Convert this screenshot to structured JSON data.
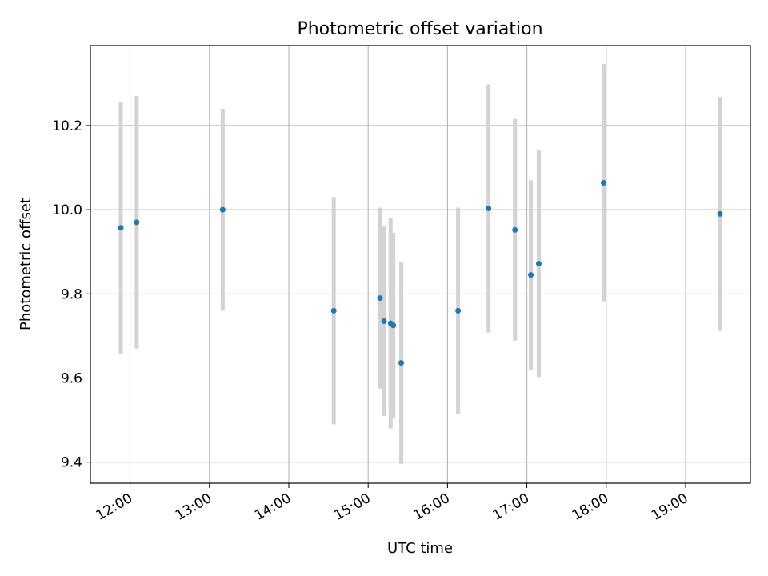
{
  "chart_data": {
    "type": "scatter",
    "title": "Photometric offset variation",
    "xlabel": "UTC time",
    "ylabel": "Photometric offset",
    "xlim": [
      "11:30",
      "19:49"
    ],
    "ylim": [
      9.35,
      10.39
    ],
    "x_ticks": [
      "12:00",
      "13:00",
      "14:00",
      "15:00",
      "16:00",
      "17:00",
      "18:00",
      "19:00"
    ],
    "y_ticks": [
      "9.4",
      "9.6",
      "9.8",
      "10.0",
      "10.2"
    ],
    "grid": true,
    "colors": {
      "point": "#1f77b4",
      "errorbar": "#d3d3d3",
      "grid": "#b0b0b0"
    },
    "points": [
      {
        "x": "11:53",
        "y": 9.957,
        "yerr": 0.3
      },
      {
        "x": "12:05",
        "y": 9.97,
        "yerr": 0.3
      },
      {
        "x": "13:10",
        "y": 10.0,
        "yerr": 0.24
      },
      {
        "x": "14:34",
        "y": 9.76,
        "yerr": 0.27
      },
      {
        "x": "15:09",
        "y": 9.79,
        "yerr": 0.215
      },
      {
        "x": "15:12",
        "y": 9.735,
        "yerr": 0.225
      },
      {
        "x": "15:17",
        "y": 9.73,
        "yerr": 0.25
      },
      {
        "x": "15:19",
        "y": 9.725,
        "yerr": 0.22
      },
      {
        "x": "15:25",
        "y": 9.636,
        "yerr": 0.24
      },
      {
        "x": "16:08",
        "y": 9.76,
        "yerr": 0.245
      },
      {
        "x": "16:31",
        "y": 10.003,
        "yerr": 0.295
      },
      {
        "x": "16:51",
        "y": 9.952,
        "yerr": 0.263
      },
      {
        "x": "17:03",
        "y": 9.845,
        "yerr": 0.225
      },
      {
        "x": "17:09",
        "y": 9.872,
        "yerr": 0.27
      },
      {
        "x": "17:58",
        "y": 10.064,
        "yerr": 0.282
      },
      {
        "x": "19:26",
        "y": 9.99,
        "yerr": 0.278
      }
    ]
  }
}
